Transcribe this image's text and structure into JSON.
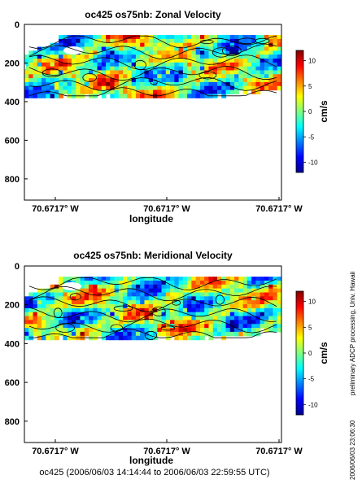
{
  "chart_data": [
    {
      "type": "heatmap",
      "title": "oc425 os75nb: Zonal Velocity",
      "xlabel": "longitude",
      "ylabel": "",
      "x_tick_labels": [
        "70.6717° W",
        "70.6717° W",
        "70.6717° W"
      ],
      "y_ticks": [
        0,
        200,
        400,
        600,
        800
      ],
      "ylim": [
        910,
        0
      ],
      "y_reversed": true,
      "colorbar": {
        "label": "cm/s",
        "ticks": [
          10,
          5,
          0,
          -5,
          -10
        ],
        "range": [
          -12,
          12
        ]
      },
      "data_depth_range": [
        55,
        380
      ],
      "seed": 7
    },
    {
      "type": "heatmap",
      "title": "oc425 os75nb: Meridional Velocity",
      "xlabel": "longitude",
      "ylabel": "",
      "x_tick_labels": [
        "70.6717° W",
        "70.6717° W",
        "70.6717° W"
      ],
      "y_ticks": [
        0,
        200,
        400,
        600,
        800
      ],
      "ylim": [
        910,
        0
      ],
      "y_reversed": true,
      "colorbar": {
        "label": "cm/s",
        "ticks": [
          10,
          5,
          0,
          -5,
          -10
        ],
        "range": [
          -12,
          12
        ]
      },
      "data_depth_range": [
        55,
        380
      ],
      "seed": 19
    }
  ],
  "footer": "oc425 (2006/06/03 14:14:44 to 2006/06/03 22:59:55 UTC)",
  "side_note": "preliminary ADCP processing,   Univ. Hawaii",
  "side_date": "2006/06/03 23:06:30"
}
